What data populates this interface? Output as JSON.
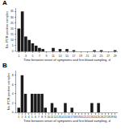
{
  "chart_data": [
    {
      "type": "bar",
      "title": "A",
      "x": [
        1,
        2,
        3,
        4,
        5,
        6,
        7,
        8,
        9,
        10,
        11,
        12,
        13,
        14,
        15,
        16,
        17,
        18,
        19,
        20,
        21,
        22,
        23,
        24,
        25,
        26,
        27,
        28,
        29
      ],
      "values": [
        20,
        35,
        13,
        10,
        7,
        5,
        3,
        2,
        0,
        0,
        3,
        0,
        2,
        0,
        2,
        0,
        1,
        0,
        0,
        0,
        0,
        0,
        1,
        0,
        1,
        0,
        0,
        0,
        1
      ],
      "color": "#1a1a1a",
      "xlim": [
        0.2,
        29.8
      ],
      "ylim": [
        0,
        38
      ],
      "xticks": [
        1,
        3,
        5,
        7,
        9,
        11,
        13,
        15,
        17,
        19,
        21,
        23,
        25,
        27,
        29
      ],
      "yticks": [
        0,
        5,
        10,
        15,
        20,
        25,
        30,
        35
      ],
      "xlabel": "Time between onset of symptoms and first blood sampling, d",
      "ylabel": "No. PCR positive samples",
      "grid": false
    },
    {
      "type": "bar",
      "title": "B",
      "x": [
        1,
        2,
        3,
        4,
        5,
        6,
        7,
        8,
        9,
        10,
        11,
        12,
        13,
        14,
        15,
        16,
        17,
        18,
        19,
        20,
        21,
        22,
        23,
        24,
        25,
        26,
        27,
        28,
        29,
        30
      ],
      "values": [
        1,
        8,
        4,
        0,
        4,
        4,
        4,
        4,
        1,
        0,
        2,
        1,
        0,
        0,
        2,
        0,
        1,
        0,
        0,
        0,
        0,
        0,
        2,
        0,
        2,
        0,
        0,
        0,
        0,
        0
      ],
      "color": "#1a1a1a",
      "xlim": [
        0.2,
        30.8
      ],
      "ylim": [
        0,
        9
      ],
      "xticks": [
        1,
        2,
        3,
        4,
        5,
        6,
        7,
        8,
        9,
        10,
        11,
        12,
        13,
        14,
        15,
        16,
        17,
        18,
        19,
        20,
        21,
        22,
        23,
        24,
        25,
        26,
        27,
        28,
        29,
        30
      ],
      "yticks": [
        0,
        2,
        4,
        6,
        8
      ],
      "xlabel": "Time between onset of symptoms and first blood sampling, d",
      "ylabel": "No. PCR positive samples",
      "grid": false
    }
  ]
}
